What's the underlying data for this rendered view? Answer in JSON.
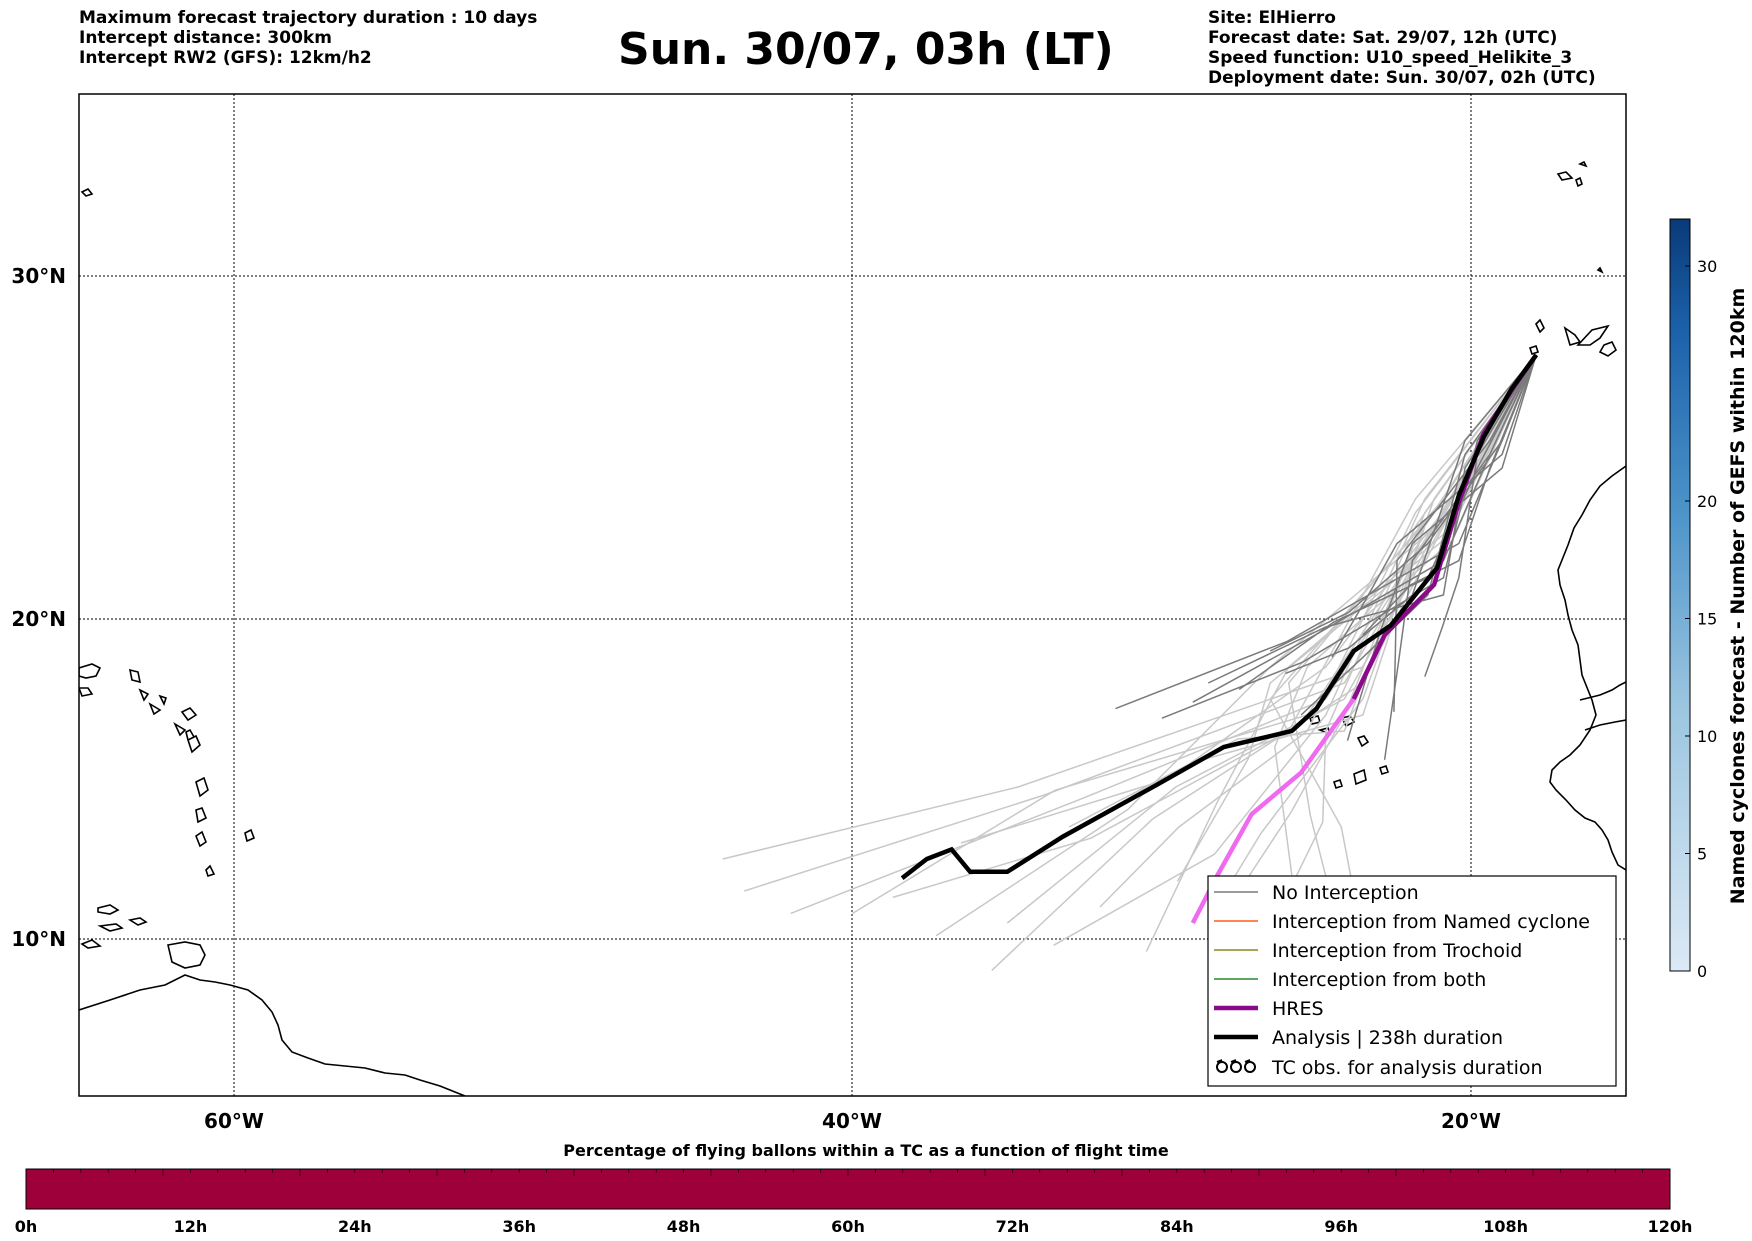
{
  "header": {
    "left_lines": [
      "Maximum forecast trajectory duration : 10 days",
      "Intercept distance: 300km",
      "Intercept RW2 (GFS):  12km/h2"
    ],
    "title": "Sun. 30/07, 03h (LT)",
    "right_lines": [
      "Site: ElHierro",
      "Forecast date: Sat. 29/07, 12h (UTC)",
      "Speed function: U10_speed_Helikite_3",
      "Deployment date: Sun. 30/07, 02h (UTC)"
    ]
  },
  "map": {
    "lon_range": [
      -65,
      15
    ],
    "lat_range": [
      5,
      35
    ],
    "x_ticks": [
      "60°W",
      "40°W",
      "20°W"
    ],
    "y_ticks": [
      "30°N",
      "20°N",
      "10°N"
    ],
    "grid": true,
    "colors": {
      "no_interception": "#7a7a7a",
      "no_interception_light": "#c8c8c8",
      "named_cyclone": "#ff5a1a",
      "trochoid": "#8a8a1a",
      "both": "#2a8a2a",
      "hres": "#8b0a8b",
      "hres_light": "#ee6aee",
      "analysis": "#000000"
    }
  },
  "legend": {
    "items": [
      "No Interception",
      "Interception from Named cyclone",
      "Interception from Trochoid",
      "Interception from both",
      "HRES",
      "Analysis | 238h duration",
      "TC obs. for analysis duration"
    ]
  },
  "colorbar_right": {
    "label": "Named cyclones forecast - Number of GEFS within 120km",
    "ticks": [
      "0",
      "5",
      "10",
      "15",
      "20",
      "30"
    ],
    "range": [
      0,
      32
    ]
  },
  "bottom_bar": {
    "title": "Percentage of flying ballons within a TC as a function of flight time",
    "ticks": [
      "0h",
      "12h",
      "24h",
      "36h",
      "48h",
      "60h",
      "72h",
      "84h",
      "96h",
      "108h",
      "120h"
    ],
    "fill_color": "#9e003a"
  },
  "chart_data": {
    "type": "line",
    "hres_track": [
      [
        -17.9,
        27.7
      ],
      [
        -18.6,
        26.8
      ],
      [
        -19.6,
        25.4
      ],
      [
        -20.4,
        23.4
      ],
      [
        -21.2,
        21.0
      ],
      [
        -22.8,
        19.5
      ],
      [
        -23.8,
        17.5
      ],
      [
        -25.5,
        15.2
      ],
      [
        -27.1,
        13.9
      ],
      [
        -28.2,
        12.0
      ],
      [
        -29.0,
        10.5
      ]
    ],
    "analysis_track": [
      [
        -17.9,
        27.7
      ],
      [
        -18.7,
        26.7
      ],
      [
        -19.6,
        25.3
      ],
      [
        -20.4,
        23.6
      ],
      [
        -21.1,
        21.5
      ],
      [
        -22.6,
        19.8
      ],
      [
        -23.8,
        19.0
      ],
      [
        -25.0,
        17.2
      ],
      [
        -25.8,
        16.5
      ],
      [
        -28.0,
        16.0
      ],
      [
        -30.2,
        14.8
      ],
      [
        -33.2,
        13.2
      ],
      [
        -35.0,
        12.1
      ],
      [
        -36.2,
        12.1
      ],
      [
        -36.8,
        12.8
      ],
      [
        -37.6,
        12.5
      ],
      [
        -38.4,
        11.9
      ]
    ]
  }
}
